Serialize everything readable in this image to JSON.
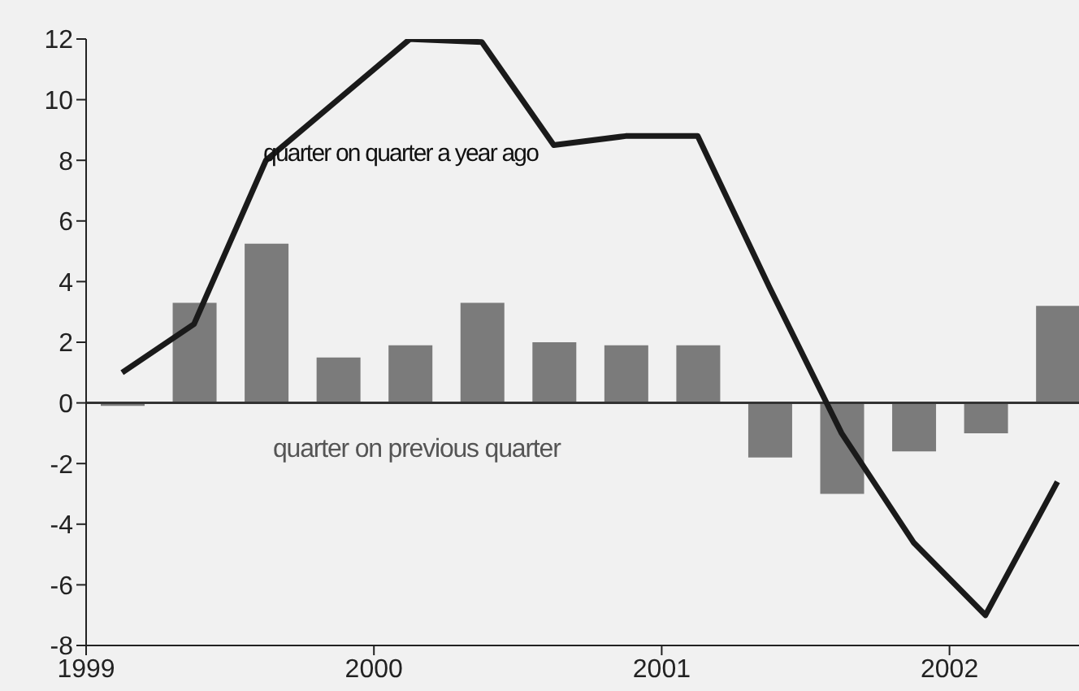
{
  "chart_data": {
    "type": "bar",
    "x": [
      1999.125,
      1999.375,
      1999.625,
      1999.875,
      2000.125,
      2000.375,
      2000.625,
      2000.875,
      2001.125,
      2001.375,
      2001.625,
      2001.875,
      2002.125,
      2002.375
    ],
    "series": [
      {
        "name": "quarter on previous quarter",
        "color": "#7b7b7b",
        "values": [
          -0.1,
          3.3,
          5.25,
          1.5,
          1.9,
          3.3,
          2.0,
          1.9,
          1.9,
          -1.8,
          -3.0,
          -1.6,
          -1.0,
          3.2
        ]
      },
      {
        "name": "quarter on quarter a year ago",
        "type": "line",
        "color": "#1a1a1a",
        "values": [
          1.0,
          2.6,
          8.0,
          10.0,
          12.0,
          11.9,
          8.5,
          8.8,
          8.8,
          3.8,
          -1.0,
          -4.6,
          -7.0,
          -2.6
        ]
      }
    ],
    "xlim": [
      1999,
      2002.45
    ],
    "xticks": [
      1999,
      2000,
      2001,
      2002
    ],
    "ylim": [
      -8,
      12
    ],
    "yticks": [
      -8,
      -6,
      -4,
      -2,
      0,
      2,
      4,
      6,
      8,
      10,
      12
    ],
    "ref_lines": [
      {
        "axis": "y",
        "value": 0,
        "color": "#333333"
      }
    ],
    "grid": false,
    "marker": "none",
    "line_style": "solid"
  }
}
